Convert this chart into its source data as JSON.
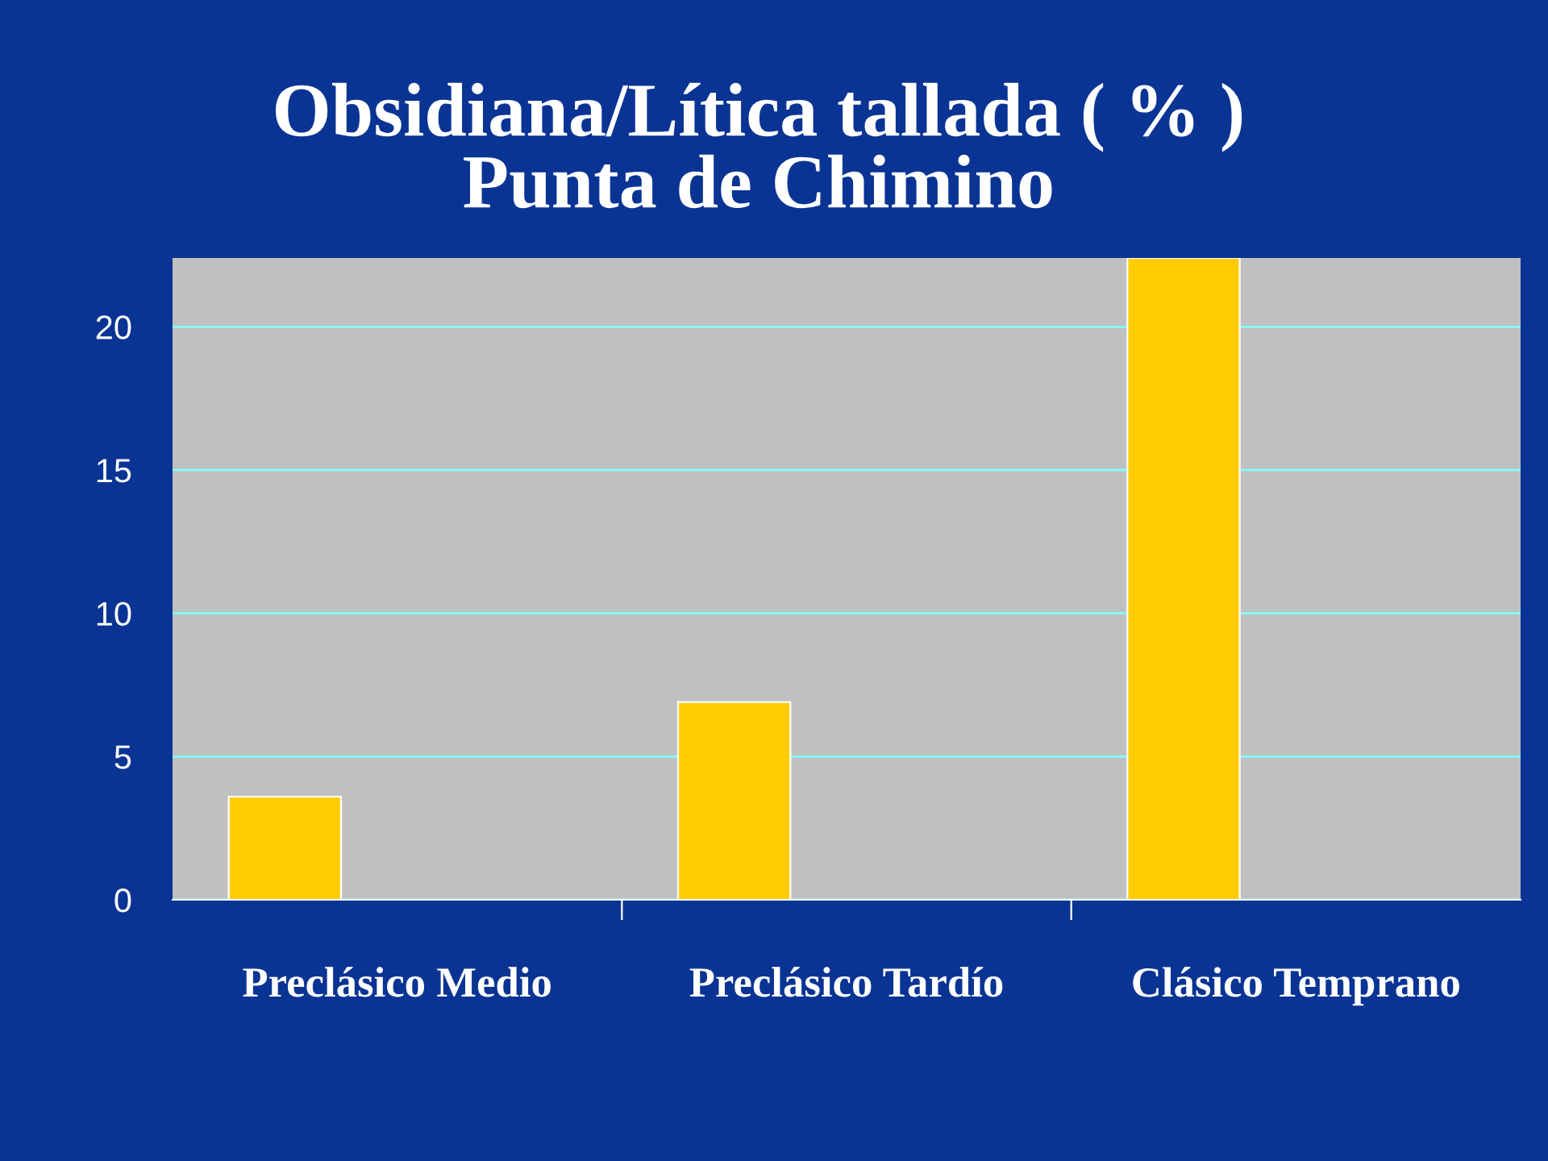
{
  "chart_data": {
    "type": "bar",
    "title": "Obsidiana/Lítica tallada ( % )\nPunta de Chimino",
    "categories": [
      "Preclásico Medio",
      "Preclásico Tardío",
      "Clásico Temprano"
    ],
    "series": [
      {
        "color": "#ffcc00",
        "values": [
          3.6,
          6.9,
          22.4
        ]
      }
    ],
    "ylim": [
      0,
      22.4
    ],
    "yticks": [
      0,
      5,
      10,
      15,
      20
    ],
    "grid": "y"
  }
}
